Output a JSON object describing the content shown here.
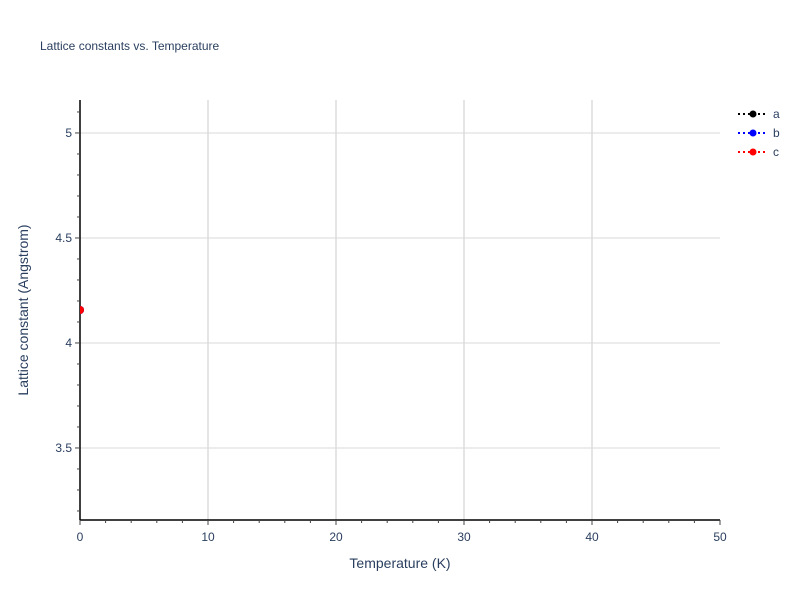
{
  "chart_data": {
    "type": "scatter",
    "mode": "lines+markers",
    "title": "Lattice constants vs. Temperature",
    "xlabel": "Temperature (K)",
    "ylabel": "Lattice constant (Angstrom)",
    "xlim": [
      0,
      50
    ],
    "ylim": [
      3.157,
      5.157
    ],
    "xticks": [
      0,
      10,
      20,
      30,
      40,
      50
    ],
    "xtick_labels": [
      "0",
      "10",
      "20",
      "30",
      "40",
      "50"
    ],
    "yticks": [
      3.5,
      4,
      4.5,
      5
    ],
    "ytick_labels": [
      "3.5",
      "4",
      "4.5",
      "5"
    ],
    "x_minor_step": 2,
    "y_minor_step": 0.1,
    "grid": true,
    "legend_position": "top-right",
    "series": [
      {
        "name": "a",
        "color": "#000000",
        "line": "dotted",
        "x": [
          0
        ],
        "y": [
          4.157
        ]
      },
      {
        "name": "b",
        "color": "#0000ff",
        "line": "dotted",
        "x": [
          0
        ],
        "y": [
          4.157
        ]
      },
      {
        "name": "c",
        "color": "#ff0000",
        "line": "dotted",
        "x": [
          0
        ],
        "y": [
          4.157
        ]
      }
    ]
  }
}
